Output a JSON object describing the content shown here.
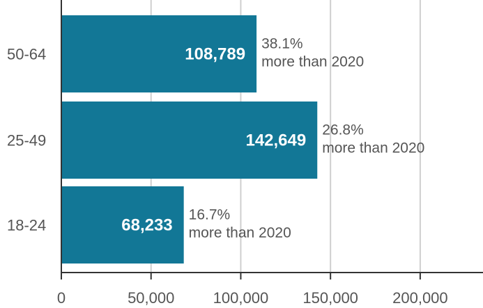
{
  "chart_data": {
    "type": "bar",
    "orientation": "horizontal",
    "categories": [
      "50-64",
      "25-49",
      "18-24"
    ],
    "values": [
      108789,
      142649,
      68233
    ],
    "value_labels": [
      "108,789",
      "142,649",
      "68,233"
    ],
    "change_pct": [
      "38.1%",
      "26.8%",
      "16.7%"
    ],
    "change_text": "more than 2020",
    "xlim": [
      0,
      235000
    ],
    "x_ticks": [
      0,
      50000,
      100000,
      150000,
      200000
    ],
    "x_tick_labels": [
      "0",
      "50,000",
      "100,000",
      "150,000",
      "200,000"
    ],
    "grid": true,
    "title": "",
    "xlabel": "",
    "ylabel": "",
    "bar_color": "#127796",
    "value_label_color": "#ffffff",
    "text_color": "#555555",
    "grid_color": "#cfcfcf",
    "axis_color": "#333333"
  }
}
